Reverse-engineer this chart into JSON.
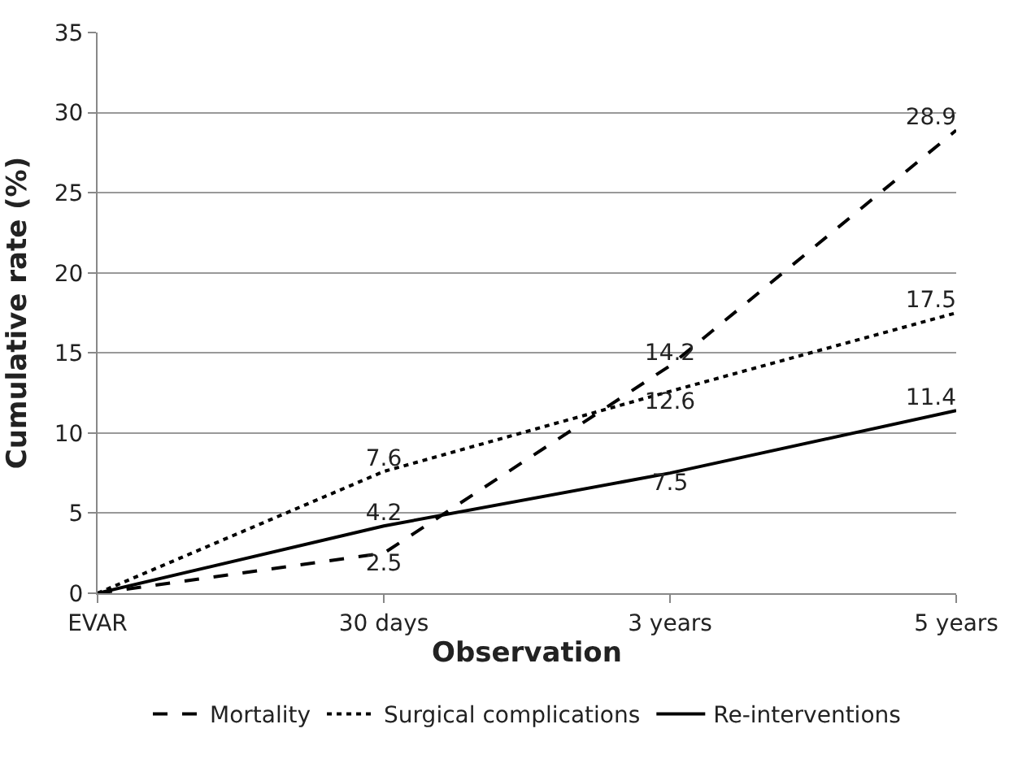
{
  "chart_data": {
    "type": "line",
    "xlabel": "Observation",
    "ylabel": "Cumulative rate (%)",
    "categories": [
      "EVAR",
      "30 days",
      "3 years",
      "5 years"
    ],
    "series": [
      {
        "name": "Mortality",
        "color": "#000000",
        "line_style": "dashed",
        "values": [
          0,
          2.5,
          14.2,
          28.9
        ],
        "value_labels": [
          null,
          "2.5",
          "14.2",
          "28.9"
        ]
      },
      {
        "name": "Surgical complications",
        "color": "#000000",
        "line_style": "dotted",
        "values": [
          0,
          7.6,
          12.6,
          17.5
        ],
        "value_labels": [
          null,
          "7.6",
          "12.6",
          "17.5"
        ]
      },
      {
        "name": "Re-interventions",
        "color": "#000000",
        "line_style": "solid",
        "values": [
          0,
          4.2,
          7.5,
          11.4
        ],
        "value_labels": [
          null,
          "4.2",
          "7.5",
          "11.4"
        ]
      }
    ],
    "ylim": [
      0,
      35
    ],
    "yticks": [
      0,
      5,
      10,
      15,
      20,
      25,
      30,
      35
    ],
    "grid": "y",
    "legend": "bottom",
    "marker": "none"
  }
}
